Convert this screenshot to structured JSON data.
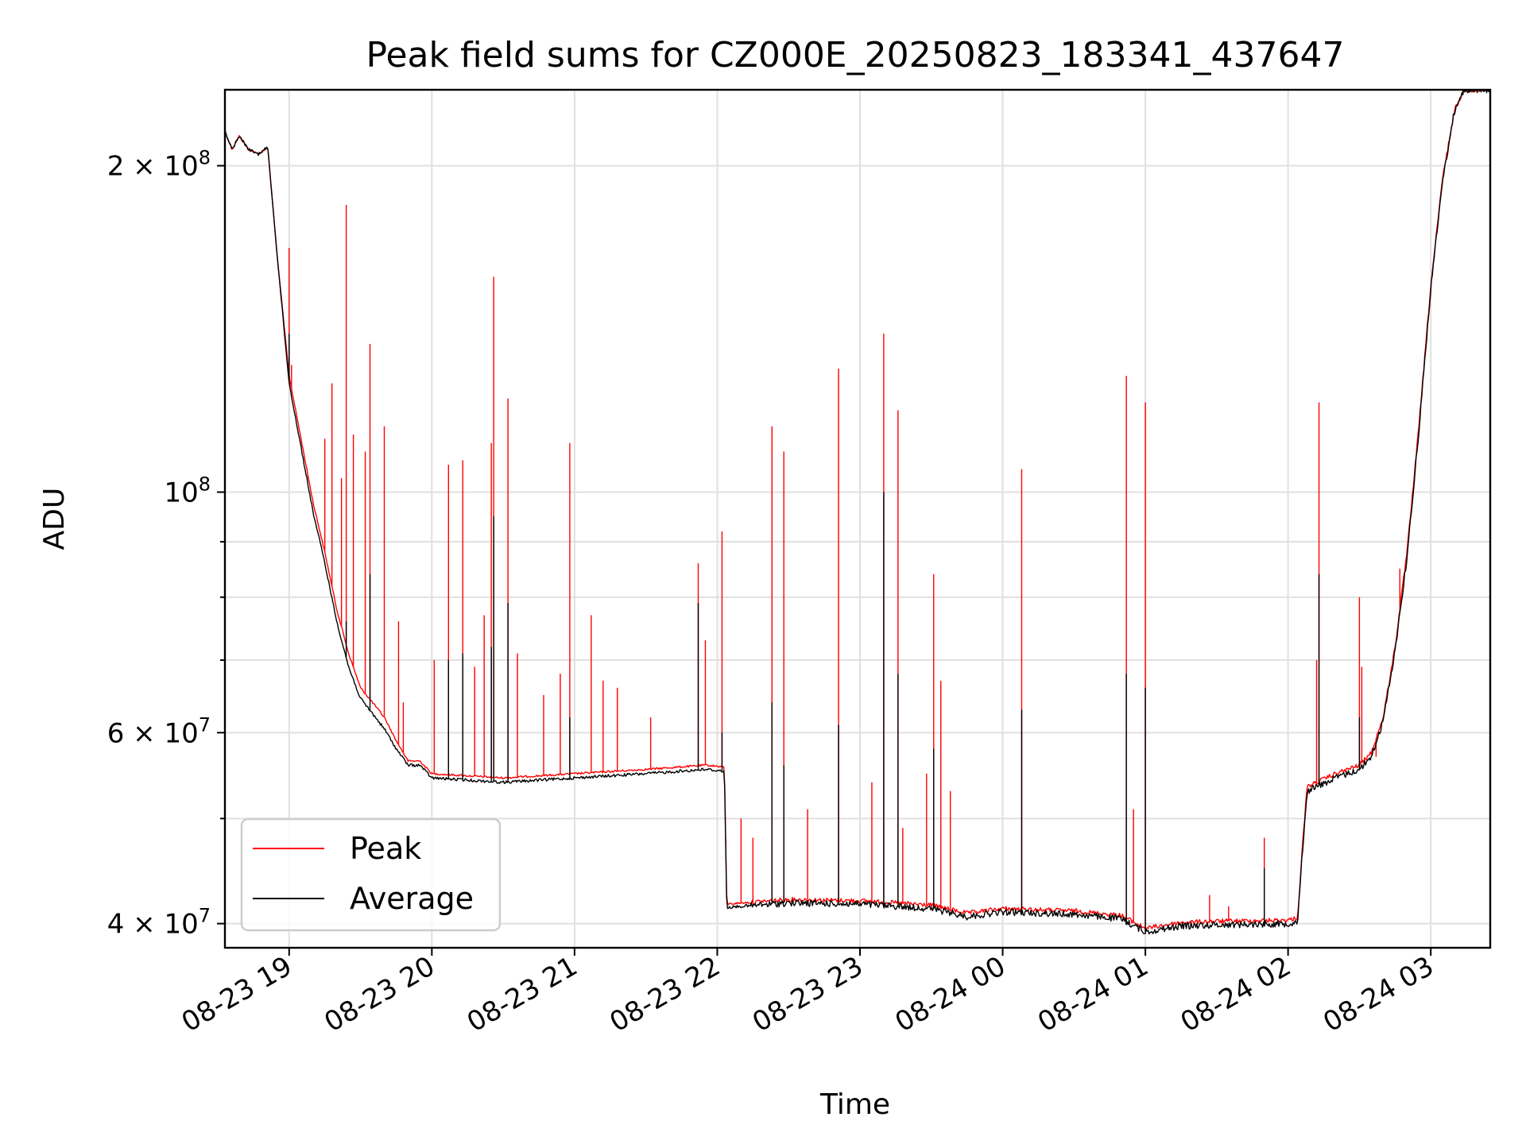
{
  "chart_data": {
    "type": "line",
    "title": "Peak field sums for CZ000E_20250823_183341_437647",
    "xlabel": "Time",
    "ylabel": "ADU",
    "x_axis": {
      "type": "datetime",
      "range": [
        "2025-08-23T18:33",
        "2025-08-24T03:25"
      ],
      "ticks": [
        "2025-08-23T19:00",
        "2025-08-23T20:00",
        "2025-08-23T21:00",
        "2025-08-23T22:00",
        "2025-08-23T23:00",
        "2025-08-24T00:00",
        "2025-08-24T01:00",
        "2025-08-24T02:00",
        "2025-08-24T03:00"
      ],
      "tick_labels": [
        "08-23 19",
        "08-23 20",
        "08-23 21",
        "08-23 22",
        "08-23 23",
        "08-24 00",
        "08-24 01",
        "08-24 02",
        "08-24 03"
      ],
      "tick_rotation_deg": 30
    },
    "y_axis": {
      "scale": "log",
      "range": [
        38000000,
        235000000
      ],
      "major_ticks": [
        40000000,
        60000000,
        100000000,
        200000000
      ],
      "major_tick_labels": [
        {
          "coef": "4",
          "exp": "7"
        },
        {
          "coef": "6",
          "exp": "7"
        },
        {
          "coef": "",
          "exp": "8"
        },
        {
          "coef": "2",
          "exp": "8"
        }
      ],
      "minor_ticks": [
        50000000,
        70000000,
        80000000,
        90000000
      ]
    },
    "grid": true,
    "legend": {
      "placement": "lower-left",
      "entries": [
        "Peak",
        "Average"
      ]
    },
    "series": [
      {
        "name": "Peak",
        "color": "#ff0000",
        "baseline": [
          [
            "2025-08-23T18:33",
            215000000
          ],
          [
            "2025-08-23T18:36",
            207000000
          ],
          [
            "2025-08-23T18:39",
            213000000
          ],
          [
            "2025-08-23T18:43",
            207000000
          ],
          [
            "2025-08-23T18:47",
            205000000
          ],
          [
            "2025-08-23T18:51",
            208000000
          ],
          [
            "2025-08-23T18:55",
            165000000
          ],
          [
            "2025-08-23T19:00",
            128000000
          ],
          [
            "2025-08-23T19:05",
            112000000
          ],
          [
            "2025-08-23T19:10",
            98000000
          ],
          [
            "2025-08-23T19:15",
            88000000
          ],
          [
            "2025-08-23T19:20",
            78000000
          ],
          [
            "2025-08-23T19:25",
            71000000
          ],
          [
            "2025-08-23T19:30",
            66000000
          ],
          [
            "2025-08-23T19:35",
            64000000
          ],
          [
            "2025-08-23T19:40",
            62000000
          ],
          [
            "2025-08-23T19:45",
            59000000
          ],
          [
            "2025-08-23T19:50",
            56500000
          ],
          [
            "2025-08-23T19:55",
            56500000
          ],
          [
            "2025-08-23T20:00",
            55000000
          ],
          [
            "2025-08-23T20:30",
            54500000
          ],
          [
            "2025-08-23T21:00",
            55000000
          ],
          [
            "2025-08-23T21:30",
            55500000
          ],
          [
            "2025-08-23T21:55",
            56000000
          ],
          [
            "2025-08-23T22:03",
            55800000
          ],
          [
            "2025-08-23T22:04",
            41700000
          ],
          [
            "2025-08-23T22:30",
            42100000
          ],
          [
            "2025-08-23T23:00",
            42000000
          ],
          [
            "2025-08-23T23:30",
            41600000
          ],
          [
            "2025-08-23T23:45",
            40900000
          ],
          [
            "2025-08-24T00:00",
            41300000
          ],
          [
            "2025-08-24T00:30",
            41100000
          ],
          [
            "2025-08-24T00:50",
            40700000
          ],
          [
            "2025-08-24T01:00",
            39600000
          ],
          [
            "2025-08-24T01:15",
            40100000
          ],
          [
            "2025-08-24T01:30",
            40200000
          ],
          [
            "2025-08-24T02:00",
            40300000
          ],
          [
            "2025-08-24T02:04",
            40500000
          ],
          [
            "2025-08-24T02:06",
            47000000
          ],
          [
            "2025-08-24T02:08",
            53500000
          ],
          [
            "2025-08-24T02:20",
            55000000
          ],
          [
            "2025-08-24T02:30",
            56000000
          ],
          [
            "2025-08-24T02:35",
            57500000
          ],
          [
            "2025-08-24T02:40",
            62000000
          ],
          [
            "2025-08-24T02:45",
            72000000
          ],
          [
            "2025-08-24T02:50",
            88000000
          ],
          [
            "2025-08-24T02:55",
            115000000
          ],
          [
            "2025-08-24T03:00",
            155000000
          ],
          [
            "2025-08-24T03:05",
            195000000
          ],
          [
            "2025-08-24T03:10",
            225000000
          ],
          [
            "2025-08-24T03:14",
            235000000
          ],
          [
            "2025-08-24T03:25",
            235000000
          ]
        ],
        "spikes": [
          [
            "2025-08-23T19:00",
            168000000
          ],
          [
            "2025-08-23T19:01",
            131000000
          ],
          [
            "2025-08-23T19:08",
            103000000
          ],
          [
            "2025-08-23T19:15",
            112000000
          ],
          [
            "2025-08-23T19:18",
            126000000
          ],
          [
            "2025-08-23T19:22",
            103000000
          ],
          [
            "2025-08-23T19:24",
            184000000
          ],
          [
            "2025-08-23T19:27",
            113000000
          ],
          [
            "2025-08-23T19:32",
            109000000
          ],
          [
            "2025-08-23T19:34",
            137000000
          ],
          [
            "2025-08-23T19:40",
            115000000
          ],
          [
            "2025-08-23T19:46",
            76000000
          ],
          [
            "2025-08-23T19:48",
            64000000
          ],
          [
            "2025-08-23T20:01",
            70000000
          ],
          [
            "2025-08-23T20:07",
            106000000
          ],
          [
            "2025-08-23T20:13",
            107000000
          ],
          [
            "2025-08-23T20:18",
            69000000
          ],
          [
            "2025-08-23T20:22",
            77000000
          ],
          [
            "2025-08-23T20:25",
            111000000
          ],
          [
            "2025-08-23T20:26",
            158000000
          ],
          [
            "2025-08-23T20:32",
            122000000
          ],
          [
            "2025-08-23T20:36",
            71000000
          ],
          [
            "2025-08-23T20:47",
            65000000
          ],
          [
            "2025-08-23T20:54",
            68000000
          ],
          [
            "2025-08-23T20:58",
            111000000
          ],
          [
            "2025-08-23T21:07",
            77000000
          ],
          [
            "2025-08-23T21:12",
            67000000
          ],
          [
            "2025-08-23T21:18",
            66000000
          ],
          [
            "2025-08-23T21:32",
            62000000
          ],
          [
            "2025-08-23T21:52",
            86000000
          ],
          [
            "2025-08-23T21:55",
            73000000
          ],
          [
            "2025-08-23T22:02",
            92000000
          ],
          [
            "2025-08-23T22:10",
            50000000
          ],
          [
            "2025-08-23T22:15",
            48000000
          ],
          [
            "2025-08-23T22:23",
            115000000
          ],
          [
            "2025-08-23T22:28",
            109000000
          ],
          [
            "2025-08-23T22:38",
            51000000
          ],
          [
            "2025-08-23T22:51",
            130000000
          ],
          [
            "2025-08-23T23:05",
            54000000
          ],
          [
            "2025-08-23T23:10",
            140000000
          ],
          [
            "2025-08-23T23:16",
            119000000
          ],
          [
            "2025-08-23T23:18",
            49000000
          ],
          [
            "2025-08-23T23:28",
            55000000
          ],
          [
            "2025-08-23T23:31",
            84000000
          ],
          [
            "2025-08-23T23:34",
            67000000
          ],
          [
            "2025-08-23T23:38",
            53000000
          ],
          [
            "2025-08-24T00:08",
            105000000
          ],
          [
            "2025-08-24T00:52",
            128000000
          ],
          [
            "2025-08-24T00:55",
            51000000
          ],
          [
            "2025-08-24T01:00",
            121000000
          ],
          [
            "2025-08-24T01:27",
            42500000
          ],
          [
            "2025-08-24T01:35",
            41500000
          ],
          [
            "2025-08-24T01:50",
            48000000
          ],
          [
            "2025-08-24T02:12",
            70000000
          ],
          [
            "2025-08-24T02:13",
            121000000
          ],
          [
            "2025-08-24T02:30",
            80000000
          ],
          [
            "2025-08-24T02:31",
            69000000
          ],
          [
            "2025-08-24T02:37",
            57000000
          ],
          [
            "2025-08-24T02:47",
            85000000
          ]
        ]
      },
      {
        "name": "Average",
        "color": "#000000",
        "baseline": [
          [
            "2025-08-23T18:33",
            215000000
          ],
          [
            "2025-08-23T18:36",
            207000000
          ],
          [
            "2025-08-23T18:39",
            213000000
          ],
          [
            "2025-08-23T18:43",
            207000000
          ],
          [
            "2025-08-23T18:47",
            205000000
          ],
          [
            "2025-08-23T18:51",
            208000000
          ],
          [
            "2025-08-23T18:55",
            165000000
          ],
          [
            "2025-08-23T19:00",
            126000000
          ],
          [
            "2025-08-23T19:05",
            110000000
          ],
          [
            "2025-08-23T19:10",
            96000000
          ],
          [
            "2025-08-23T19:15",
            86000000
          ],
          [
            "2025-08-23T19:20",
            76000000
          ],
          [
            "2025-08-23T19:25",
            69000000
          ],
          [
            "2025-08-23T19:30",
            64500000
          ],
          [
            "2025-08-23T19:35",
            62500000
          ],
          [
            "2025-08-23T19:40",
            60500000
          ],
          [
            "2025-08-23T19:45",
            58000000
          ],
          [
            "2025-08-23T19:50",
            56000000
          ],
          [
            "2025-08-23T19:55",
            56000000
          ],
          [
            "2025-08-23T20:00",
            54500000
          ],
          [
            "2025-08-23T20:30",
            54000000
          ],
          [
            "2025-08-23T21:00",
            54500000
          ],
          [
            "2025-08-23T21:30",
            55000000
          ],
          [
            "2025-08-23T21:55",
            55500000
          ],
          [
            "2025-08-23T22:03",
            55300000
          ],
          [
            "2025-08-23T22:04",
            41400000
          ],
          [
            "2025-08-23T22:30",
            41800000
          ],
          [
            "2025-08-23T23:00",
            41700000
          ],
          [
            "2025-08-23T23:30",
            41300000
          ],
          [
            "2025-08-23T23:45",
            40600000
          ],
          [
            "2025-08-24T00:00",
            41000000
          ],
          [
            "2025-08-24T00:30",
            40800000
          ],
          [
            "2025-08-24T00:50",
            40400000
          ],
          [
            "2025-08-24T01:00",
            39300000
          ],
          [
            "2025-08-24T01:15",
            39800000
          ],
          [
            "2025-08-24T01:30",
            39900000
          ],
          [
            "2025-08-24T02:00",
            40000000
          ],
          [
            "2025-08-24T02:04",
            40200000
          ],
          [
            "2025-08-24T02:06",
            46500000
          ],
          [
            "2025-08-24T02:08",
            53000000
          ],
          [
            "2025-08-24T02:20",
            54500000
          ],
          [
            "2025-08-24T02:30",
            55500000
          ],
          [
            "2025-08-24T02:35",
            57000000
          ],
          [
            "2025-08-24T02:40",
            61500000
          ],
          [
            "2025-08-24T02:45",
            71500000
          ],
          [
            "2025-08-24T02:50",
            87000000
          ],
          [
            "2025-08-24T02:55",
            114000000
          ],
          [
            "2025-08-24T03:00",
            154000000
          ],
          [
            "2025-08-24T03:05",
            194000000
          ],
          [
            "2025-08-24T03:10",
            225000000
          ],
          [
            "2025-08-24T03:14",
            235000000
          ],
          [
            "2025-08-24T03:25",
            235000000
          ]
        ],
        "spikes": [
          [
            "2025-08-23T19:00",
            140000000
          ],
          [
            "2025-08-23T19:24",
            76000000
          ],
          [
            "2025-08-23T19:34",
            84000000
          ],
          [
            "2025-08-23T20:07",
            70000000
          ],
          [
            "2025-08-23T20:13",
            71000000
          ],
          [
            "2025-08-23T20:25",
            72000000
          ],
          [
            "2025-08-23T20:26",
            95000000
          ],
          [
            "2025-08-23T20:32",
            79000000
          ],
          [
            "2025-08-23T20:58",
            62000000
          ],
          [
            "2025-08-23T21:52",
            79000000
          ],
          [
            "2025-08-23T22:02",
            60000000
          ],
          [
            "2025-08-23T22:23",
            64000000
          ],
          [
            "2025-08-23T22:28",
            56000000
          ],
          [
            "2025-08-23T22:51",
            61000000
          ],
          [
            "2025-08-23T23:10",
            100000000
          ],
          [
            "2025-08-23T23:16",
            68000000
          ],
          [
            "2025-08-23T23:31",
            58000000
          ],
          [
            "2025-08-24T00:08",
            63000000
          ],
          [
            "2025-08-24T00:52",
            68000000
          ],
          [
            "2025-08-24T01:00",
            66000000
          ],
          [
            "2025-08-24T01:50",
            45000000
          ],
          [
            "2025-08-24T02:13",
            84000000
          ],
          [
            "2025-08-24T02:30",
            62000000
          ]
        ]
      }
    ]
  }
}
